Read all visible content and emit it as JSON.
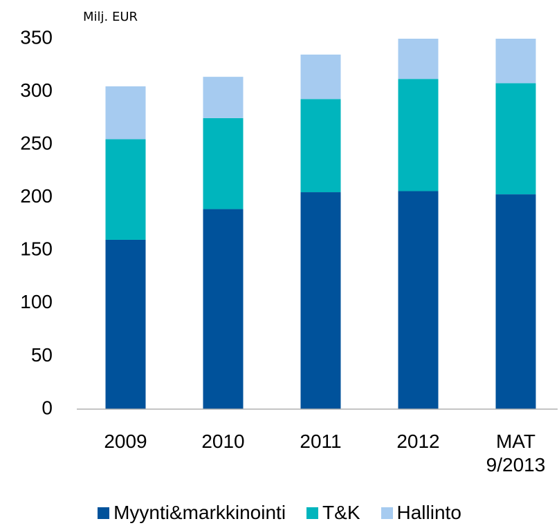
{
  "chart_data": {
    "type": "stacked_bar",
    "y_axis_label": "Milj. EUR",
    "categories": [
      "2009",
      "2010",
      "2011",
      "2012",
      "MAT 9/2013"
    ],
    "series": [
      {
        "name": "Myynti&markkinointi",
        "color": "#00529b",
        "values": [
          160,
          189,
          205,
          206,
          203
        ]
      },
      {
        "name": "T&K",
        "color": "#00b5bd",
        "values": [
          95,
          86,
          88,
          106,
          105
        ]
      },
      {
        "name": "Hallinto",
        "color": "#a6cbf0",
        "values": [
          50,
          39,
          42,
          38,
          42
        ]
      }
    ],
    "ylim": [
      0,
      350
    ],
    "yticks": [
      0,
      50,
      100,
      150,
      200,
      250,
      300,
      350
    ],
    "grid": false,
    "legend": "bottom"
  }
}
